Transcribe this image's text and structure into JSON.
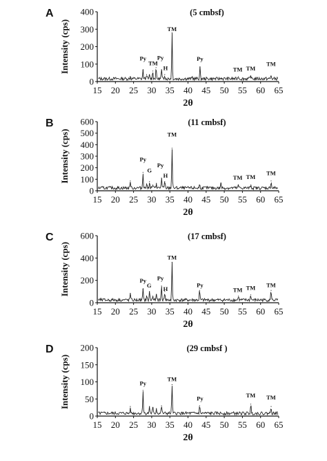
{
  "chart_data": [
    {
      "type": "line",
      "panel_label": "A",
      "title": "(5 cmbsf)",
      "xlabel": "2θ",
      "ylabel": "Intensity (cps)",
      "xlim": [
        15,
        65
      ],
      "ylim": [
        0,
        400
      ],
      "xticks": [
        15,
        20,
        25,
        30,
        35,
        40,
        45,
        50,
        55,
        60,
        65
      ],
      "yticks": [
        0,
        100,
        200,
        300,
        400
      ],
      "series": [
        {
          "peaks": [
            [
              24.1,
              28
            ],
            [
              27.6,
              65
            ],
            [
              28.6,
              40
            ],
            [
              29.4,
              35
            ],
            [
              30.3,
              60
            ],
            [
              31.2,
              80
            ],
            [
              32.7,
              68
            ],
            [
              33.6,
              40
            ],
            [
              35.6,
              280
            ],
            [
              41.2,
              25
            ],
            [
              43.3,
              80
            ],
            [
              49.2,
              20
            ],
            [
              53.9,
              28
            ],
            [
              57.3,
              32
            ],
            [
              62.9,
              32
            ]
          ]
        }
      ],
      "annotations": [
        {
          "text": "Py",
          "x": 27.6,
          "y": 120
        },
        {
          "text": "TM",
          "x": 30.4,
          "y": 94
        },
        {
          "text": "Py",
          "x": 32.4,
          "y": 125
        },
        {
          "text": "H",
          "x": 33.8,
          "y": 66
        },
        {
          "text": "TM",
          "x": 35.6,
          "y": 290
        },
        {
          "text": "Py",
          "x": 43.3,
          "y": 118
        },
        {
          "text": "TM",
          "x": 53.7,
          "y": 58
        },
        {
          "text": "TM",
          "x": 57.3,
          "y": 64
        },
        {
          "text": "TM",
          "x": 62.9,
          "y": 90
        }
      ]
    },
    {
      "type": "line",
      "panel_label": "B",
      "title": "(11 cmbsf)",
      "xlabel": "2θ",
      "ylabel": "Intensity (cps)",
      "xlim": [
        15,
        65
      ],
      "ylim": [
        0,
        600
      ],
      "xticks": [
        15,
        20,
        25,
        30,
        35,
        40,
        45,
        50,
        55,
        60,
        65
      ],
      "yticks": [
        0,
        100,
        200,
        300,
        400,
        500,
        600
      ],
      "series": [
        {
          "peaks": [
            [
              24.1,
              85
            ],
            [
              27.6,
              160
            ],
            [
              28.6,
              60
            ],
            [
              29.4,
              80
            ],
            [
              30.3,
              50
            ],
            [
              31.3,
              65
            ],
            [
              32.7,
              110
            ],
            [
              33.6,
              80
            ],
            [
              35.6,
              370
            ],
            [
              43.2,
              50
            ],
            [
              49.1,
              65
            ],
            [
              53.9,
              45
            ],
            [
              57.3,
              50
            ],
            [
              62.9,
              85
            ]
          ]
        }
      ],
      "annotations": [
        {
          "text": "Py",
          "x": 27.6,
          "y": 255
        },
        {
          "text": "G",
          "x": 29.4,
          "y": 160
        },
        {
          "text": "Py",
          "x": 32.4,
          "y": 203
        },
        {
          "text": "H",
          "x": 33.8,
          "y": 113
        },
        {
          "text": "TM",
          "x": 35.6,
          "y": 470
        },
        {
          "text": "TM",
          "x": 53.7,
          "y": 95
        },
        {
          "text": "TM",
          "x": 57.3,
          "y": 103
        },
        {
          "text": "TM",
          "x": 62.9,
          "y": 135
        }
      ]
    },
    {
      "type": "line",
      "panel_label": "C",
      "title": "(17 cmbsf)",
      "xlabel": "2θ",
      "ylabel": "Intensity (cps)",
      "xlim": [
        15,
        65
      ],
      "ylim": [
        0,
        600
      ],
      "xticks": [
        15,
        20,
        25,
        30,
        35,
        40,
        45,
        50,
        55,
        60,
        65
      ],
      "yticks": [
        0,
        200,
        400,
        600
      ],
      "series": [
        {
          "peaks": [
            [
              24.1,
              85
            ],
            [
              27.6,
              120
            ],
            [
              28.6,
              60
            ],
            [
              29.4,
              100
            ],
            [
              30.3,
              60
            ],
            [
              31.3,
              70
            ],
            [
              32.7,
              150
            ],
            [
              33.6,
              100
            ],
            [
              35.6,
              360
            ],
            [
              43.2,
              110
            ],
            [
              53.9,
              60
            ],
            [
              57.3,
              70
            ],
            [
              62.9,
              110
            ]
          ]
        }
      ],
      "annotations": [
        {
          "text": "Py",
          "x": 27.6,
          "y": 180
        },
        {
          "text": "G",
          "x": 29.3,
          "y": 135
        },
        {
          "text": "Py",
          "x": 32.4,
          "y": 200
        },
        {
          "text": "H",
          "x": 33.8,
          "y": 105
        },
        {
          "text": "TM",
          "x": 35.6,
          "y": 388
        },
        {
          "text": "Py",
          "x": 43.3,
          "y": 140
        },
        {
          "text": "TM",
          "x": 53.7,
          "y": 95
        },
        {
          "text": "TM",
          "x": 57.3,
          "y": 115
        },
        {
          "text": "TM",
          "x": 62.9,
          "y": 140
        }
      ]
    },
    {
      "type": "line",
      "panel_label": "D",
      "title": "(29 cmbsf )",
      "xlabel": "2θ",
      "ylabel": "Intensity (cps)",
      "xlim": [
        15,
        65
      ],
      "ylim": [
        0,
        200
      ],
      "xticks": [
        15,
        20,
        25,
        30,
        35,
        40,
        45,
        50,
        55,
        60,
        65
      ],
      "yticks": [
        0,
        50,
        100,
        150,
        200
      ],
      "series": [
        {
          "peaks": [
            [
              24.1,
              28
            ],
            [
              27.6,
              75
            ],
            [
              29.4,
              28
            ],
            [
              30.3,
              25
            ],
            [
              31.3,
              22
            ],
            [
              32.7,
              30
            ],
            [
              35.6,
              92
            ],
            [
              43.2,
              30
            ],
            [
              57.3,
              35
            ],
            [
              62.9,
              28
            ]
          ]
        }
      ],
      "annotations": [
        {
          "text": "Py",
          "x": 27.6,
          "y": 90
        },
        {
          "text": "TM",
          "x": 35.6,
          "y": 102
        },
        {
          "text": "Py",
          "x": 43.3,
          "y": 45
        },
        {
          "text": "TM",
          "x": 57.3,
          "y": 55
        },
        {
          "text": "TM",
          "x": 62.9,
          "y": 48
        }
      ]
    }
  ]
}
